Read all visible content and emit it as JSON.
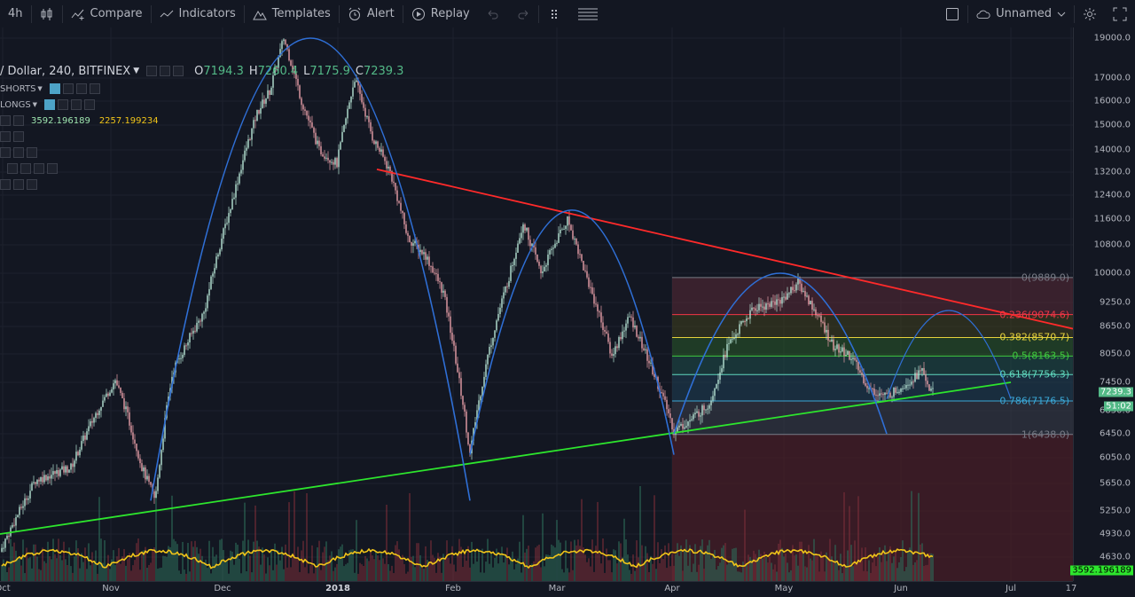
{
  "toolbar": {
    "interval": "4h",
    "compare": "Compare",
    "indicators": "Indicators",
    "templates": "Templates",
    "alert": "Alert",
    "replay": "Replay",
    "layout_name": "Unnamed"
  },
  "legend": {
    "symbol": "/ Dollar, 240, BITFINEX",
    "o_label": "O",
    "o": "7194.3",
    "h_label": "H",
    "h": "7260.4",
    "l_label": "L",
    "l": "7175.9",
    "c_label": "C",
    "c": "7239.3",
    "shorts": "SHORTS",
    "longs": "LONGS",
    "ind_value_1": "3592.196189",
    "ind_value_2": "2257.199234"
  },
  "price_axis": {
    "ticks": [
      "19000.0",
      "17000.0",
      "16000.0",
      "15000.0",
      "14000.0",
      "13200.0",
      "12400.0",
      "11600.0",
      "10800.0",
      "10000.0",
      "9250.0",
      "8650.0",
      "8050.0",
      "7450.0",
      "6850.0",
      "6450.0",
      "6050.0",
      "5650.0",
      "5250.0",
      "4930.0",
      "4630.0"
    ],
    "last_price": "7239.3",
    "countdown": "51:02",
    "volume_tag": "3592.196189"
  },
  "time_axis": {
    "labels": [
      "Oct",
      "Nov",
      "Dec",
      "2018",
      "Feb",
      "Mar",
      "Apr",
      "May",
      "Jun",
      "Jul",
      "17"
    ]
  },
  "fib": {
    "levels": [
      {
        "label": "0(9889.0)",
        "ratio": 0,
        "color": "#787b86"
      },
      {
        "label": "0.236(9074.6)",
        "ratio": 0.236,
        "color": "#f23645"
      },
      {
        "label": "0.382(8570.7)",
        "ratio": 0.382,
        "color": "#e6d23c"
      },
      {
        "label": "0.5(8163.5)",
        "ratio": 0.5,
        "color": "#3fc93f"
      },
      {
        "label": "0.618(7756.3)",
        "ratio": 0.618,
        "color": "#5fd6bd"
      },
      {
        "label": "0.786(7176.5)",
        "ratio": 0.786,
        "color": "#3ba7d6"
      },
      {
        "label": "1(6438.0)",
        "ratio": 1,
        "color": "#787b86"
      }
    ]
  },
  "colors": {
    "up": "#b8e6d6",
    "down": "#e8a0a8",
    "resistance": "#ff2a2a",
    "support": "#2de52d",
    "arc": "#2f6fd6",
    "volume_ma": "#f0c419"
  }
}
